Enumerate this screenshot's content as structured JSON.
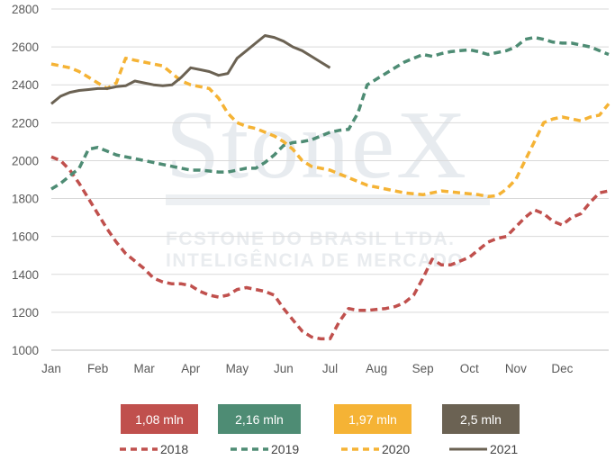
{
  "chart_data": {
    "type": "line",
    "title": "",
    "xlabel": "",
    "ylabel": "",
    "ylim": [
      1000,
      2800
    ],
    "yticks": [
      1000,
      1200,
      1400,
      1600,
      1800,
      2000,
      2200,
      2400,
      2600,
      2800
    ],
    "xlim": [
      0,
      12
    ],
    "x_tick_labels": [
      "Jan",
      "Feb",
      "Mar",
      "Apr",
      "May",
      "Jun",
      "Jul",
      "Aug",
      "Sep",
      "Oct",
      "Nov",
      "Dec"
    ],
    "grid": "horizontal",
    "legend_position": "bottom",
    "watermark": {
      "logo": "StoneX",
      "line1": "FCSTONE DO BRASIL LTDA.",
      "line2": "INTELIGÊNCIA DE MERCADO"
    },
    "series": [
      {
        "name": "2018",
        "color": "#c0504d",
        "style": "dashed",
        "x": [
          0,
          0.2,
          0.4,
          0.6,
          0.8,
          1.0,
          1.2,
          1.4,
          1.6,
          1.8,
          2.0,
          2.2,
          2.4,
          2.6,
          2.8,
          3.0,
          3.2,
          3.4,
          3.6,
          3.8,
          4.0,
          4.2,
          4.4,
          4.6,
          4.8,
          5.0,
          5.2,
          5.4,
          5.6,
          5.8,
          6.0,
          6.2,
          6.4,
          6.6,
          6.8,
          7.0,
          7.2,
          7.4,
          7.6,
          7.8,
          8.0,
          8.2,
          8.4,
          8.6,
          8.8,
          9.0,
          9.2,
          9.4,
          9.6,
          9.8,
          10.0,
          10.2,
          10.4,
          10.6,
          10.8,
          11.0,
          11.2,
          11.4,
          11.6,
          11.8,
          12.0
        ],
        "values": [
          2020,
          2000,
          1950,
          1880,
          1800,
          1720,
          1640,
          1570,
          1510,
          1470,
          1430,
          1380,
          1360,
          1350,
          1350,
          1340,
          1310,
          1290,
          1280,
          1290,
          1320,
          1330,
          1320,
          1310,
          1290,
          1220,
          1160,
          1100,
          1070,
          1060,
          1060,
          1150,
          1220,
          1210,
          1210,
          1215,
          1220,
          1230,
          1250,
          1290,
          1380,
          1480,
          1450,
          1450,
          1470,
          1490,
          1530,
          1570,
          1590,
          1600,
          1650,
          1700,
          1740,
          1720,
          1680,
          1660,
          1700,
          1720,
          1780,
          1830,
          1840
        ]
      },
      {
        "name": "2019",
        "color": "#4e8c74",
        "style": "dashed",
        "x": [
          0,
          0.2,
          0.4,
          0.6,
          0.8,
          1.0,
          1.2,
          1.4,
          1.6,
          1.8,
          2.0,
          2.2,
          2.4,
          2.6,
          2.8,
          3.0,
          3.2,
          3.4,
          3.6,
          3.8,
          4.0,
          4.2,
          4.4,
          4.6,
          4.8,
          5.0,
          5.2,
          5.4,
          5.6,
          5.8,
          6.0,
          6.2,
          6.4,
          6.6,
          6.8,
          7.0,
          7.2,
          7.4,
          7.6,
          7.8,
          8.0,
          8.2,
          8.4,
          8.6,
          8.8,
          9.0,
          9.2,
          9.4,
          9.6,
          9.8,
          10.0,
          10.2,
          10.4,
          10.6,
          10.8,
          11.0,
          11.2,
          11.4,
          11.6,
          11.8,
          12.0
        ],
        "values": [
          1850,
          1880,
          1920,
          1960,
          2060,
          2070,
          2050,
          2030,
          2020,
          2010,
          2000,
          1990,
          1980,
          1970,
          1960,
          1950,
          1950,
          1945,
          1940,
          1940,
          1950,
          1960,
          1960,
          1990,
          2030,
          2080,
          2095,
          2100,
          2110,
          2130,
          2150,
          2160,
          2165,
          2250,
          2400,
          2430,
          2460,
          2490,
          2520,
          2540,
          2560,
          2550,
          2565,
          2575,
          2580,
          2585,
          2575,
          2560,
          2570,
          2580,
          2600,
          2640,
          2650,
          2640,
          2625,
          2620,
          2620,
          2610,
          2600,
          2580,
          2560
        ]
      },
      {
        "name": "2020",
        "color": "#f5b335",
        "style": "dashed",
        "x": [
          0,
          0.2,
          0.4,
          0.6,
          0.8,
          1.0,
          1.2,
          1.4,
          1.6,
          1.8,
          2.0,
          2.2,
          2.4,
          2.6,
          2.8,
          3.0,
          3.2,
          3.4,
          3.6,
          3.8,
          4.0,
          4.2,
          4.4,
          4.6,
          4.8,
          5.0,
          5.2,
          5.4,
          5.6,
          5.8,
          6.0,
          6.2,
          6.4,
          6.6,
          6.8,
          7.0,
          7.2,
          7.4,
          7.6,
          7.8,
          8.0,
          8.2,
          8.4,
          8.6,
          8.8,
          9.0,
          9.2,
          9.4,
          9.6,
          9.8,
          10.0,
          10.2,
          10.4,
          10.6,
          10.8,
          11.0,
          11.2,
          11.4,
          11.6,
          11.8,
          12.0
        ],
        "values": [
          2510,
          2500,
          2490,
          2470,
          2440,
          2410,
          2380,
          2410,
          2540,
          2530,
          2520,
          2510,
          2500,
          2460,
          2420,
          2400,
          2390,
          2380,
          2330,
          2250,
          2200,
          2180,
          2170,
          2150,
          2130,
          2100,
          2060,
          2000,
          1970,
          1960,
          1950,
          1930,
          1910,
          1890,
          1870,
          1860,
          1850,
          1840,
          1830,
          1825,
          1820,
          1830,
          1840,
          1835,
          1830,
          1825,
          1820,
          1810,
          1815,
          1850,
          1900,
          2000,
          2100,
          2200,
          2220,
          2230,
          2220,
          2210,
          2230,
          2240,
          2300
        ]
      },
      {
        "name": "2021",
        "color": "#6b6253",
        "style": "solid",
        "x": [
          0,
          0.2,
          0.4,
          0.6,
          0.8,
          1.0,
          1.2,
          1.4,
          1.6,
          1.8,
          2.0,
          2.2,
          2.4,
          2.6,
          2.8,
          3.0,
          3.2,
          3.4,
          3.6,
          3.8,
          4.0,
          4.2,
          4.4,
          4.6,
          4.8,
          5.0,
          5.2,
          5.4,
          5.6,
          5.8,
          6.0
        ],
        "values": [
          2300,
          2340,
          2360,
          2370,
          2375,
          2380,
          2380,
          2390,
          2395,
          2420,
          2410,
          2400,
          2395,
          2400,
          2440,
          2490,
          2480,
          2470,
          2450,
          2460,
          2540,
          2580,
          2620,
          2660,
          2650,
          2630,
          2600,
          2580,
          2550,
          2520,
          2490
        ]
      }
    ],
    "badges": [
      {
        "text": "1,08 mln",
        "color": "#c0504d"
      },
      {
        "text": "2,16 mln",
        "color": "#4e8c74"
      },
      {
        "text": "1,97 mln",
        "color": "#f5b335"
      },
      {
        "text": "2,5 mln",
        "color": "#6b6253"
      }
    ]
  }
}
